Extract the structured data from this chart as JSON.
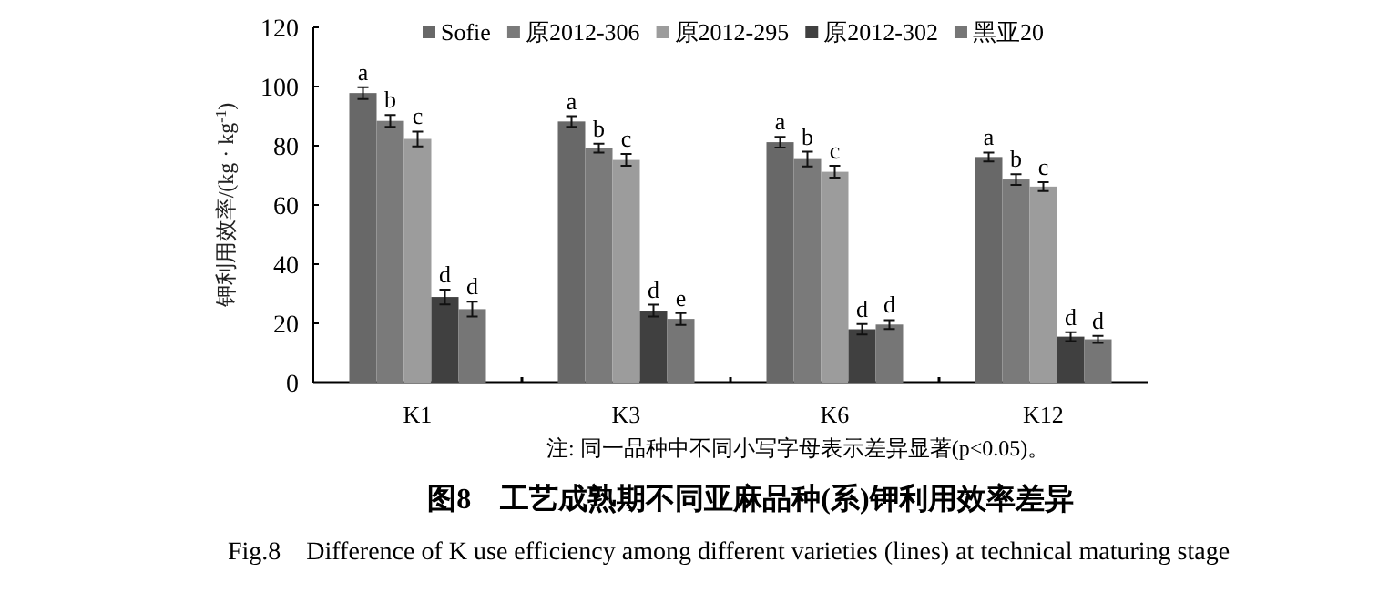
{
  "chart_data": {
    "type": "bar",
    "title": "图8　工艺成熟期不同亚麻品种(系)钾利用效率差异",
    "subtitle": "Fig.8　Difference of K use efficiency among different varieties (lines) at technical maturing stage",
    "ylabel": "钾利用效率/(kg · kg$^{-1}$)",
    "annotations": [
      "注: 同一品种中不同小写字母表示差异显著(p<0.05)。"
    ],
    "categories": [
      "K1",
      "K3",
      "K6",
      "K12"
    ],
    "ylim": [
      0,
      120
    ],
    "yticks": [
      0,
      20,
      40,
      60,
      80,
      100,
      120
    ],
    "legend": "top",
    "grid": false,
    "series": [
      {
        "name": "Sofie",
        "color": "#686868",
        "values": [
          97.8,
          88.2,
          81.2,
          76.2
        ],
        "errors": [
          2,
          1.8,
          1.8,
          1.5
        ],
        "value_labels": [
          "a",
          "a",
          "a",
          "a"
        ]
      },
      {
        "name": "原2012-306",
        "color": "#7a7a7a",
        "values": [
          88.4,
          79.2,
          75.5,
          68.6
        ],
        "errors": [
          2,
          1.5,
          2.5,
          1.8
        ],
        "value_labels": [
          "b",
          "b",
          "b",
          "b"
        ]
      },
      {
        "name": "原2012-295",
        "color": "#9c9c9c",
        "values": [
          82.3,
          75.2,
          71.2,
          66.2
        ],
        "errors": [
          2.5,
          2,
          2,
          1.5
        ],
        "value_labels": [
          "c",
          "c",
          "c",
          "c"
        ]
      },
      {
        "name": "原2012-302",
        "color": "#404040",
        "values": [
          28.9,
          24.3,
          18,
          15.5
        ],
        "errors": [
          2.5,
          2,
          1.8,
          1.5
        ],
        "value_labels": [
          "d",
          "d",
          "d",
          "d"
        ]
      },
      {
        "name": "黑亚20",
        "color": "#767676",
        "values": [
          24.8,
          21.5,
          19.6,
          14.6
        ],
        "errors": [
          2.5,
          2,
          1.5,
          1.2
        ],
        "value_labels": [
          "d",
          "e",
          "d",
          "d"
        ]
      }
    ]
  }
}
